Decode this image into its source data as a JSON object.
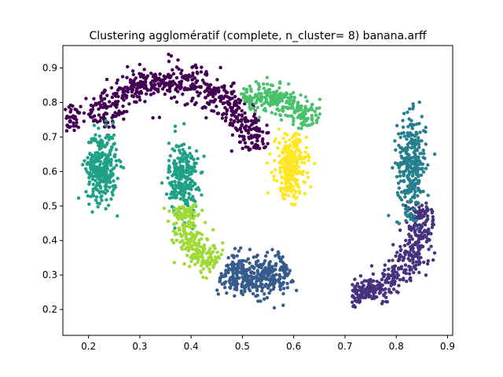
{
  "chart_data": {
    "type": "scatter",
    "title": "Clustering agglomératif (complete, n_cluster= 8) banana.arff",
    "xlabel": "",
    "ylabel": "",
    "xlim": [
      0.15,
      0.91
    ],
    "ylim": [
      0.125,
      0.965
    ],
    "x_ticks": [
      0.2,
      0.3,
      0.4,
      0.5,
      0.6,
      0.7,
      0.8,
      0.9
    ],
    "x_tick_labels": [
      "0.2",
      "0.3",
      "0.4",
      "0.5",
      "0.6",
      "0.7",
      "0.8",
      "0.9"
    ],
    "y_ticks": [
      0.2,
      0.3,
      0.4,
      0.5,
      0.6,
      0.7,
      0.8,
      0.9
    ],
    "y_tick_labels": [
      "0.2",
      "0.3",
      "0.4",
      "0.5",
      "0.6",
      "0.7",
      "0.8",
      "0.9"
    ],
    "grid": false,
    "legend": "none",
    "clusters": [
      {
        "id": 0,
        "color": "#440154",
        "shape": "arc",
        "center": [
          0.36,
          0.62
        ],
        "radius": [
          0.17,
          0.245
        ],
        "angle_start": 10,
        "angle_end": 150,
        "thickness": 0.025,
        "count": 600
      },
      {
        "id": 0,
        "color": "#440154",
        "shape": "blob",
        "center": [
          0.17,
          0.75
        ],
        "spread": [
          0.012,
          0.02
        ],
        "count": 40
      },
      {
        "id": 1,
        "color": "#46327e",
        "shape": "arc",
        "center": [
          0.7,
          0.47
        ],
        "radius": [
          0.15,
          0.23
        ],
        "angle_start": -85,
        "angle_end": 10,
        "thickness": 0.022,
        "count": 420
      },
      {
        "id": 2,
        "color": "#365c8d",
        "shape": "arc",
        "center": [
          0.52,
          0.52
        ],
        "radius": [
          0.14,
          0.23
        ],
        "angle_start": -115,
        "angle_end": -60,
        "thickness": 0.03,
        "count": 380
      },
      {
        "id": 3,
        "color": "#277f8e",
        "shape": "blob",
        "center": [
          0.83,
          0.62
        ],
        "spread": [
          0.014,
          0.07
        ],
        "count": 300
      },
      {
        "id": 4,
        "color": "#1fa187",
        "shape": "blob",
        "center": [
          0.225,
          0.615
        ],
        "spread": [
          0.015,
          0.05
        ],
        "count": 320
      },
      {
        "id": 4,
        "color": "#1fa187",
        "shape": "blob",
        "center": [
          0.385,
          0.58
        ],
        "spread": [
          0.014,
          0.055
        ],
        "count": 260
      },
      {
        "id": 5,
        "color": "#4ac16d",
        "shape": "arc",
        "center": [
          0.55,
          0.69
        ],
        "radius": [
          0.09,
          0.13
        ],
        "angle_start": 20,
        "angle_end": 120,
        "thickness": 0.022,
        "count": 260
      },
      {
        "id": 6,
        "color": "#a0da39",
        "shape": "arc",
        "center": [
          0.52,
          0.52
        ],
        "radius": [
          0.14,
          0.23
        ],
        "angle_start": -175,
        "angle_end": -122,
        "thickness": 0.025,
        "count": 260
      },
      {
        "id": 7,
        "color": "#fde725",
        "shape": "blob",
        "center": [
          0.595,
          0.615
        ],
        "spread": [
          0.015,
          0.045
        ],
        "count": 280
      }
    ]
  }
}
